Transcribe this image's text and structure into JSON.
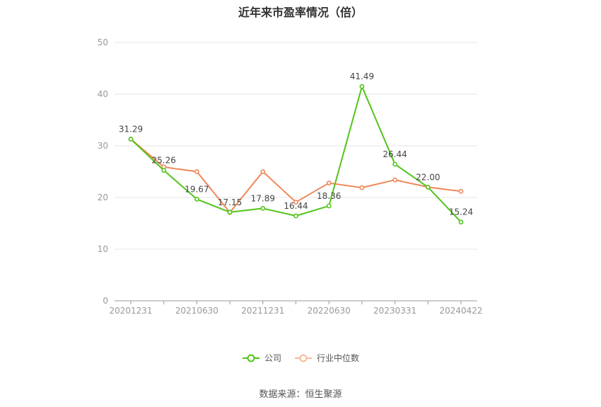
{
  "chart_data": {
    "type": "line",
    "title": "近年来市盈率情况（倍）",
    "x_tick_labels": [
      "20201231",
      "20210630",
      "20211231",
      "20220630",
      "20230331",
      "20240422"
    ],
    "ylim": [
      0,
      50
    ],
    "y_ticks": [
      0,
      10,
      20,
      30,
      40,
      50
    ],
    "grid": true,
    "legend_position": "bottom-center",
    "series": [
      {
        "name": "公司",
        "color": "#52c41a",
        "values": [
          31.29,
          25.26,
          19.67,
          17.15,
          17.89,
          16.44,
          18.36,
          41.49,
          26.44,
          22.0,
          15.24
        ],
        "labels": [
          "31.29",
          "25.26",
          "19.67",
          "17.15",
          "17.89",
          "16.44",
          "18.36",
          "41.49",
          "26.44",
          "22.00",
          "15.24"
        ]
      },
      {
        "name": "行业中位数",
        "color": "#f0885a",
        "values": [
          31.3,
          25.9,
          25.0,
          17.1,
          25.0,
          19.1,
          22.8,
          21.9,
          23.4,
          22.0,
          21.2
        ]
      }
    ]
  },
  "source_text": "数据来源：恒生聚源"
}
